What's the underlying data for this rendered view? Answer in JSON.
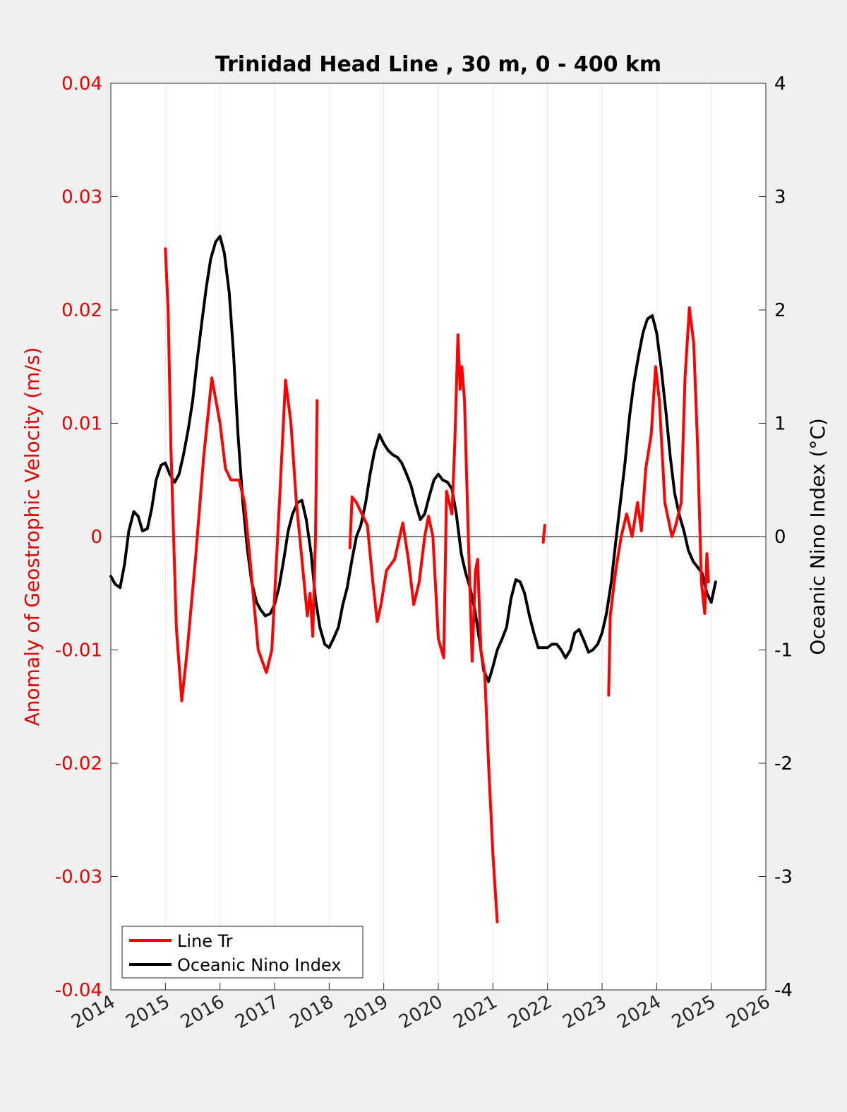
{
  "chart_data": {
    "type": "line",
    "title": "Trinidad Head Line , 30 m, 0 - 400 km",
    "xlabel": "",
    "ylabel_left": "Anomaly of Geostrophic Velocity (m/s)",
    "ylabel_right": "Oceanic Nino Index (°C)",
    "xlim": [
      2014,
      2026
    ],
    "ylim_left": [
      -0.04,
      0.04
    ],
    "ylim_right": [
      -4,
      4
    ],
    "x_ticks": [
      "2014",
      "2015",
      "2016",
      "2017",
      "2018",
      "2019",
      "2020",
      "2021",
      "2022",
      "2023",
      "2024",
      "2025",
      "2026"
    ],
    "y_left_ticks": [
      "0.04",
      "0.03",
      "0.02",
      "0.01",
      "0",
      "-0.01",
      "-0.02",
      "-0.03",
      "-0.04"
    ],
    "y_right_ticks": [
      "4",
      "3",
      "2",
      "1",
      "0",
      "-1",
      "-2",
      "-3",
      "-4"
    ],
    "grid_x": true,
    "zero_line": true,
    "legend_position": "bottom-left",
    "colors": {
      "line_tr": "#ff0000",
      "oni": "#000000",
      "left_axis": "#e00000",
      "right_axis": "#000000"
    },
    "series": [
      {
        "name": "Line Tr",
        "axis": "left",
        "segments": [
          [
            [
              2015.0,
              0.0254
            ],
            [
              2015.05,
              0.02
            ],
            [
              2015.1,
              0.008
            ],
            [
              2015.2,
              -0.008
            ],
            [
              2015.3,
              -0.0145
            ],
            [
              2015.4,
              -0.01
            ],
            [
              2015.55,
              -0.002
            ],
            [
              2015.7,
              0.007
            ],
            [
              2015.85,
              0.014
            ],
            [
              2016.0,
              0.01
            ],
            [
              2016.1,
              0.006
            ],
            [
              2016.2,
              0.005
            ],
            [
              2016.35,
              0.005
            ],
            [
              2016.45,
              0.003
            ],
            [
              2016.55,
              -0.002
            ],
            [
              2016.7,
              -0.01
            ],
            [
              2016.85,
              -0.012
            ],
            [
              2016.95,
              -0.01
            ],
            [
              2017.1,
              0.004
            ],
            [
              2017.2,
              0.0138
            ],
            [
              2017.3,
              0.01
            ],
            [
              2017.4,
              0.003
            ],
            [
              2017.5,
              -0.002
            ],
            [
              2017.6,
              -0.007
            ],
            [
              2017.65,
              -0.005
            ],
            [
              2017.7,
              -0.0088
            ],
            [
              2017.75,
              0.0
            ],
            [
              2017.78,
              0.012
            ]
          ],
          [
            [
              2018.38,
              -0.001
            ],
            [
              2018.42,
              0.0035
            ],
            [
              2018.5,
              0.003
            ],
            [
              2018.6,
              0.002
            ],
            [
              2018.7,
              0.001
            ],
            [
              2018.8,
              -0.004
            ],
            [
              2018.88,
              -0.0075
            ],
            [
              2018.95,
              -0.006
            ],
            [
              2019.05,
              -0.003
            ],
            [
              2019.2,
              -0.002
            ],
            [
              2019.35,
              0.0012
            ],
            [
              2019.45,
              -0.002
            ],
            [
              2019.55,
              -0.006
            ],
            [
              2019.65,
              -0.004
            ],
            [
              2019.75,
              0.0
            ],
            [
              2019.82,
              0.0018
            ],
            [
              2019.9,
              0.0
            ],
            [
              2020.0,
              -0.009
            ],
            [
              2020.1,
              -0.0107
            ],
            [
              2020.15,
              0.004
            ],
            [
              2020.25,
              0.002
            ],
            [
              2020.3,
              0.008
            ],
            [
              2020.36,
              0.0178
            ],
            [
              2020.4,
              0.013
            ],
            [
              2020.43,
              0.015
            ],
            [
              2020.48,
              0.012
            ],
            [
              2020.55,
              0.0
            ],
            [
              2020.62,
              -0.011
            ],
            [
              2020.68,
              -0.003
            ],
            [
              2020.72,
              -0.002
            ],
            [
              2020.78,
              -0.01
            ],
            [
              2020.85,
              -0.012
            ],
            [
              2020.92,
              -0.02
            ],
            [
              2021.0,
              -0.028
            ],
            [
              2021.08,
              -0.034
            ]
          ],
          [
            [
              2021.92,
              -0.0005
            ],
            [
              2021.95,
              0.001
            ]
          ],
          [
            [
              2023.12,
              -0.014
            ],
            [
              2023.15,
              -0.007
            ],
            [
              2023.25,
              -0.003
            ],
            [
              2023.35,
              0.0
            ],
            [
              2023.45,
              0.002
            ],
            [
              2023.55,
              0.0
            ],
            [
              2023.65,
              0.003
            ],
            [
              2023.72,
              0.0005
            ],
            [
              2023.8,
              0.006
            ],
            [
              2023.9,
              0.009
            ],
            [
              2023.98,
              0.015
            ],
            [
              2024.05,
              0.012
            ],
            [
              2024.15,
              0.003
            ],
            [
              2024.28,
              0.0
            ],
            [
              2024.35,
              0.001
            ],
            [
              2024.45,
              0.003
            ],
            [
              2024.52,
              0.014
            ],
            [
              2024.6,
              0.0202
            ],
            [
              2024.68,
              0.017
            ],
            [
              2024.75,
              0.008
            ],
            [
              2024.82,
              -0.004
            ],
            [
              2024.88,
              -0.0068
            ],
            [
              2024.92,
              -0.0015
            ],
            [
              2024.95,
              -0.004
            ]
          ]
        ]
      },
      {
        "name": "Oceanic Nino Index",
        "axis": "right",
        "segments": [
          [
            [
              2014.0,
              -0.35
            ],
            [
              2014.08,
              -0.42
            ],
            [
              2014.17,
              -0.45
            ],
            [
              2014.25,
              -0.25
            ],
            [
              2014.33,
              0.05
            ],
            [
              2014.42,
              0.22
            ],
            [
              2014.5,
              0.18
            ],
            [
              2014.58,
              0.05
            ],
            [
              2014.67,
              0.07
            ],
            [
              2014.75,
              0.25
            ],
            [
              2014.83,
              0.5
            ],
            [
              2014.92,
              0.63
            ],
            [
              2015.0,
              0.65
            ],
            [
              2015.08,
              0.55
            ],
            [
              2015.17,
              0.48
            ],
            [
              2015.25,
              0.55
            ],
            [
              2015.33,
              0.72
            ],
            [
              2015.42,
              0.95
            ],
            [
              2015.5,
              1.2
            ],
            [
              2015.58,
              1.55
            ],
            [
              2015.67,
              1.9
            ],
            [
              2015.75,
              2.2
            ],
            [
              2015.83,
              2.45
            ],
            [
              2015.92,
              2.6
            ],
            [
              2016.0,
              2.65
            ],
            [
              2016.08,
              2.5
            ],
            [
              2016.17,
              2.15
            ],
            [
              2016.25,
              1.6
            ],
            [
              2016.33,
              0.9
            ],
            [
              2016.42,
              0.3
            ],
            [
              2016.5,
              -0.1
            ],
            [
              2016.58,
              -0.4
            ],
            [
              2016.67,
              -0.58
            ],
            [
              2016.75,
              -0.65
            ],
            [
              2016.83,
              -0.7
            ],
            [
              2016.92,
              -0.68
            ],
            [
              2017.0,
              -0.6
            ],
            [
              2017.08,
              -0.45
            ],
            [
              2017.17,
              -0.2
            ],
            [
              2017.25,
              0.05
            ],
            [
              2017.33,
              0.2
            ],
            [
              2017.42,
              0.3
            ],
            [
              2017.5,
              0.32
            ],
            [
              2017.58,
              0.15
            ],
            [
              2017.67,
              -0.15
            ],
            [
              2017.75,
              -0.55
            ],
            [
              2017.83,
              -0.8
            ],
            [
              2017.92,
              -0.95
            ],
            [
              2018.0,
              -0.98
            ],
            [
              2018.08,
              -0.9
            ],
            [
              2018.17,
              -0.8
            ],
            [
              2018.25,
              -0.6
            ],
            [
              2018.33,
              -0.45
            ],
            [
              2018.42,
              -0.2
            ],
            [
              2018.5,
              0.0
            ],
            [
              2018.58,
              0.1
            ],
            [
              2018.67,
              0.3
            ],
            [
              2018.75,
              0.55
            ],
            [
              2018.83,
              0.75
            ],
            [
              2018.92,
              0.9
            ],
            [
              2019.0,
              0.82
            ],
            [
              2019.08,
              0.76
            ],
            [
              2019.17,
              0.72
            ],
            [
              2019.25,
              0.7
            ],
            [
              2019.33,
              0.65
            ],
            [
              2019.42,
              0.55
            ],
            [
              2019.5,
              0.45
            ],
            [
              2019.58,
              0.3
            ],
            [
              2019.67,
              0.15
            ],
            [
              2019.75,
              0.2
            ],
            [
              2019.83,
              0.35
            ],
            [
              2019.92,
              0.5
            ],
            [
              2020.0,
              0.55
            ],
            [
              2020.08,
              0.5
            ],
            [
              2020.17,
              0.48
            ],
            [
              2020.25,
              0.42
            ],
            [
              2020.33,
              0.2
            ],
            [
              2020.42,
              -0.15
            ],
            [
              2020.5,
              -0.32
            ],
            [
              2020.58,
              -0.45
            ],
            [
              2020.67,
              -0.65
            ],
            [
              2020.75,
              -0.9
            ],
            [
              2020.83,
              -1.18
            ],
            [
              2020.92,
              -1.28
            ],
            [
              2021.0,
              -1.15
            ],
            [
              2021.08,
              -1.0
            ],
            [
              2021.17,
              -0.9
            ],
            [
              2021.25,
              -0.8
            ],
            [
              2021.33,
              -0.55
            ],
            [
              2021.42,
              -0.38
            ],
            [
              2021.5,
              -0.4
            ],
            [
              2021.58,
              -0.5
            ],
            [
              2021.67,
              -0.7
            ],
            [
              2021.75,
              -0.85
            ],
            [
              2021.83,
              -0.98
            ],
            [
              2021.92,
              -0.98
            ],
            [
              2022.0,
              -0.98
            ],
            [
              2022.08,
              -0.95
            ],
            [
              2022.17,
              -0.95
            ],
            [
              2022.25,
              -1.0
            ],
            [
              2022.33,
              -1.07
            ],
            [
              2022.42,
              -1.0
            ],
            [
              2022.5,
              -0.85
            ],
            [
              2022.58,
              -0.82
            ],
            [
              2022.67,
              -0.92
            ],
            [
              2022.75,
              -1.02
            ],
            [
              2022.83,
              -1.0
            ],
            [
              2022.92,
              -0.95
            ],
            [
              2023.0,
              -0.85
            ],
            [
              2023.08,
              -0.68
            ],
            [
              2023.17,
              -0.4
            ],
            [
              2023.25,
              -0.05
            ],
            [
              2023.33,
              0.28
            ],
            [
              2023.42,
              0.65
            ],
            [
              2023.5,
              1.05
            ],
            [
              2023.58,
              1.35
            ],
            [
              2023.67,
              1.6
            ],
            [
              2023.75,
              1.8
            ],
            [
              2023.83,
              1.92
            ],
            [
              2023.92,
              1.95
            ],
            [
              2024.0,
              1.8
            ],
            [
              2024.08,
              1.5
            ],
            [
              2024.17,
              1.1
            ],
            [
              2024.25,
              0.7
            ],
            [
              2024.33,
              0.38
            ],
            [
              2024.42,
              0.18
            ],
            [
              2024.5,
              0.05
            ],
            [
              2024.58,
              -0.12
            ],
            [
              2024.67,
              -0.22
            ],
            [
              2024.75,
              -0.27
            ],
            [
              2024.83,
              -0.32
            ],
            [
              2024.92,
              -0.5
            ],
            [
              2025.0,
              -0.58
            ],
            [
              2025.08,
              -0.4
            ]
          ]
        ]
      }
    ]
  }
}
